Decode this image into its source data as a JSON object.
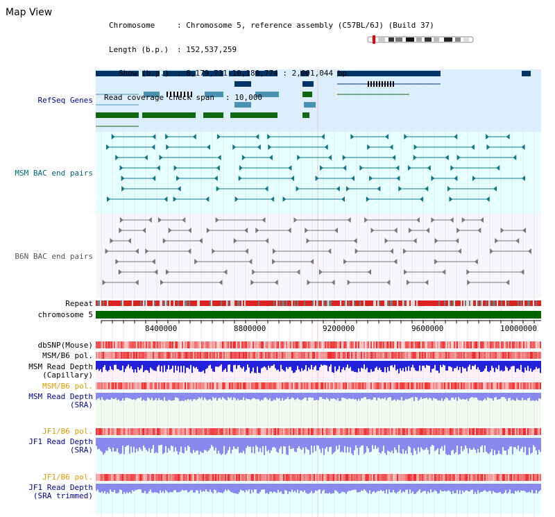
{
  "title": "Map View",
  "info": {
    "chromosome_label": "Chromosome",
    "chromosome_value": "Chromosome 5, reference assembly (C57BL/6J) (Build 37)",
    "length_label": "Length (b.p.)",
    "length_value": "152,537,259",
    "show_label": "Show (b.p.)",
    "show_value": "8,179,731-10,180,774 : 2,001,044 bp",
    "span_label": "Read coverage check span",
    "span_value": "10,000"
  },
  "tracks": {
    "refseq": "RefSeq Genes",
    "msm_bac": "MSM BAC end pairs",
    "b6n_bac": "B6N BAC end pairs",
    "repeat": "Repeat",
    "chromosome": "chromosome 5",
    "dbsnp": "dbSNP(Mouse)",
    "msm_b6_pol_1": "MSM/B6 pol.",
    "msm_read_depth_cap_1": "MSM Read Depth",
    "msm_read_depth_cap_2": "(Capillary)",
    "msm_b6_pol_2": "MSM/B6 pol.",
    "msm_read_depth_sra_1": "MSM Read Depth",
    "msm_read_depth_sra_2": "(SRA)",
    "jf1_b6_pol_1": "JF1/B6 pol.",
    "jf1_read_depth_sra_1": "JF1 Read Depth",
    "jf1_read_depth_sra_2": "(SRA)",
    "jf1_b6_pol_2": "JF1/B6 pol.",
    "jf1_read_depth_trim_1": "JF1 Read Depth",
    "jf1_read_depth_trim_2": "(SRA trimmed)"
  },
  "axis": {
    "ticks": [
      "8400000",
      "8800000",
      "9200000",
      "9600000",
      "10000000"
    ]
  },
  "colors": {
    "refseq_bg": "#dcefff",
    "msm_bg": "#e6ffff",
    "navy": "#003366",
    "steel": "#4a90b0",
    "green": "#116611",
    "teal": "#117788",
    "gray": "#777777",
    "chrom_green": "#006600",
    "depth_blue": "#2222dd",
    "depth_light": "#8888ee",
    "pol_red": "#ee3333"
  },
  "icons": {
    "ideogram": "chromosome-ideogram",
    "position_marker": "position-marker"
  }
}
